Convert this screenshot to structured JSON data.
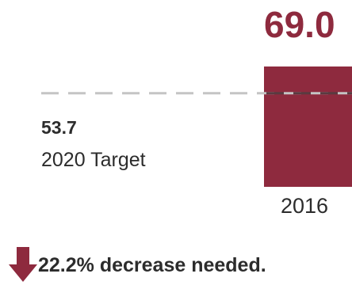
{
  "chart_data": {
    "type": "bar",
    "categories": [
      "2016"
    ],
    "values": [
      69.0
    ],
    "value_labels": [
      "69.0"
    ],
    "target": {
      "value": 53.7,
      "value_label": "53.7",
      "label": "2020 Target"
    },
    "title": "",
    "xlabel": "",
    "ylabel": "",
    "ylim": [
      0,
      69.0
    ],
    "grid": false,
    "colors": {
      "bar": "#8e2a3e",
      "target_line": "#c4c4c4",
      "target_line_overlap": "#5a3a40",
      "text": "#2c2c2c"
    }
  },
  "note": {
    "icon": "arrow-down-icon",
    "icon_color": "#8e2a3e",
    "text": "22.2% decrease needed."
  }
}
